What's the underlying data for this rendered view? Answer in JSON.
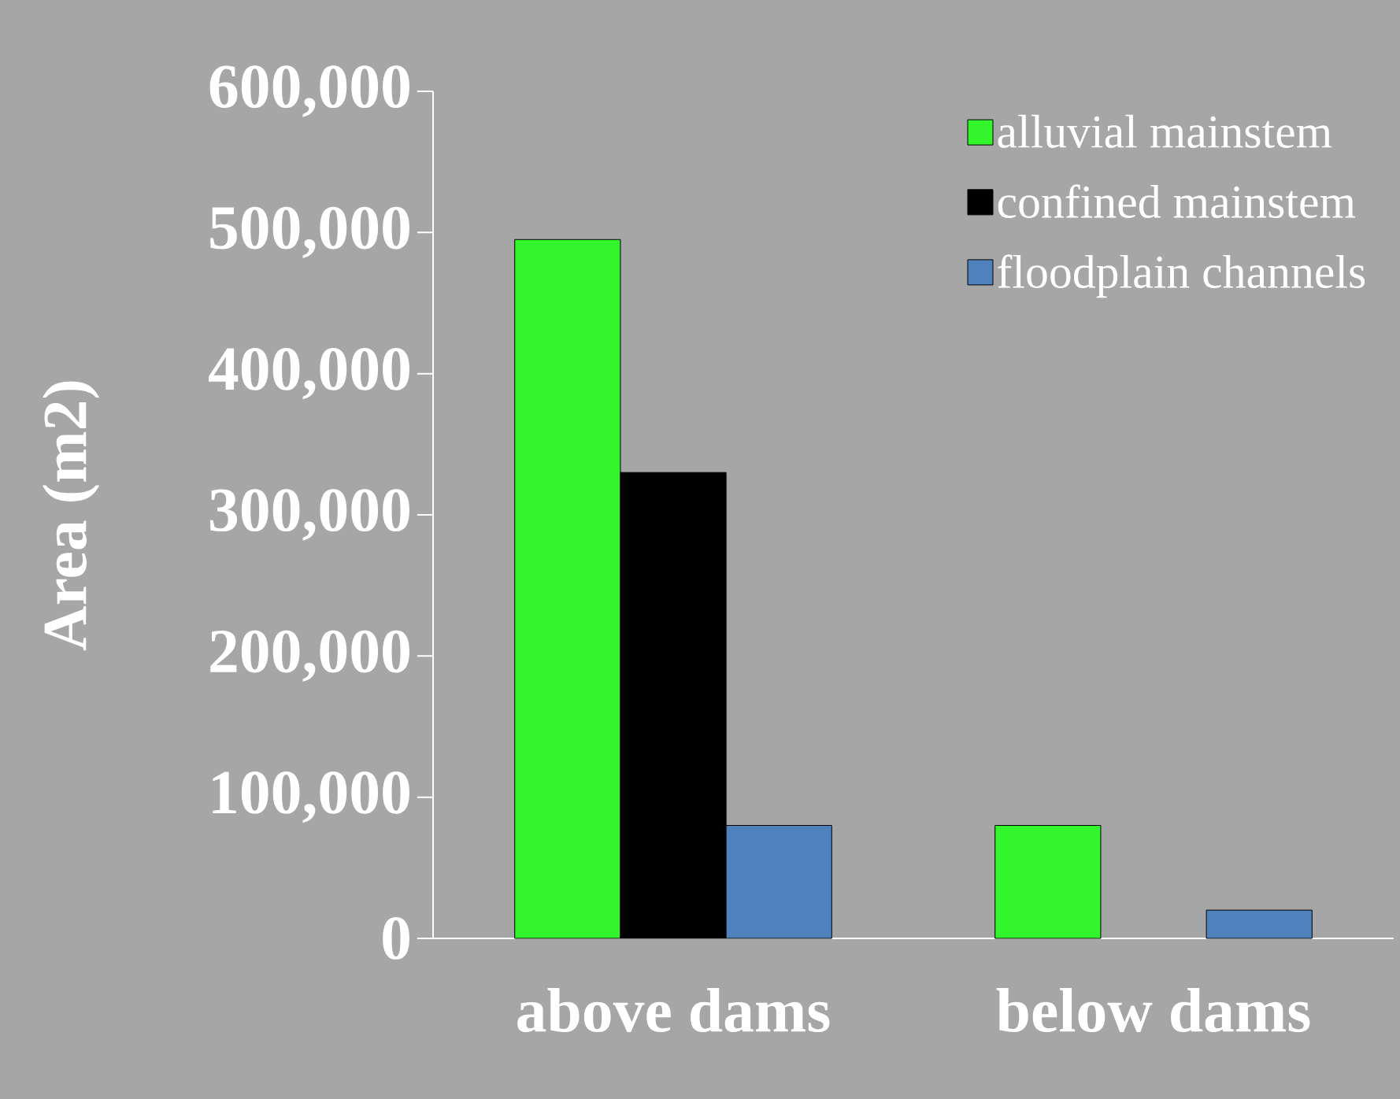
{
  "chart_data": {
    "type": "bar",
    "ylabel": "Area (m2)",
    "categories": [
      "above dams",
      "below dams"
    ],
    "series": [
      {
        "name": "alluvial mainstem",
        "color": "#33f52b",
        "values": [
          495000,
          80000
        ]
      },
      {
        "name": "confined mainstem",
        "color": "#000000",
        "values": [
          330000,
          null
        ]
      },
      {
        "name": "floodplain channels",
        "color": "#4f81bd",
        "values": [
          80000,
          20000
        ]
      }
    ],
    "ylim": [
      0,
      600000
    ],
    "yticks": [
      0,
      {
        "value": 100000,
        "label": "100,000"
      },
      {
        "value": 200000,
        "label": "200,000"
      },
      {
        "value": 300000,
        "label": "300,000"
      },
      {
        "value": 400000,
        "label": "400,000"
      },
      {
        "value": 500000,
        "label": "500,000"
      },
      {
        "value": 600000,
        "label": "600,000"
      }
    ],
    "grid": false,
    "legend": "top right"
  }
}
